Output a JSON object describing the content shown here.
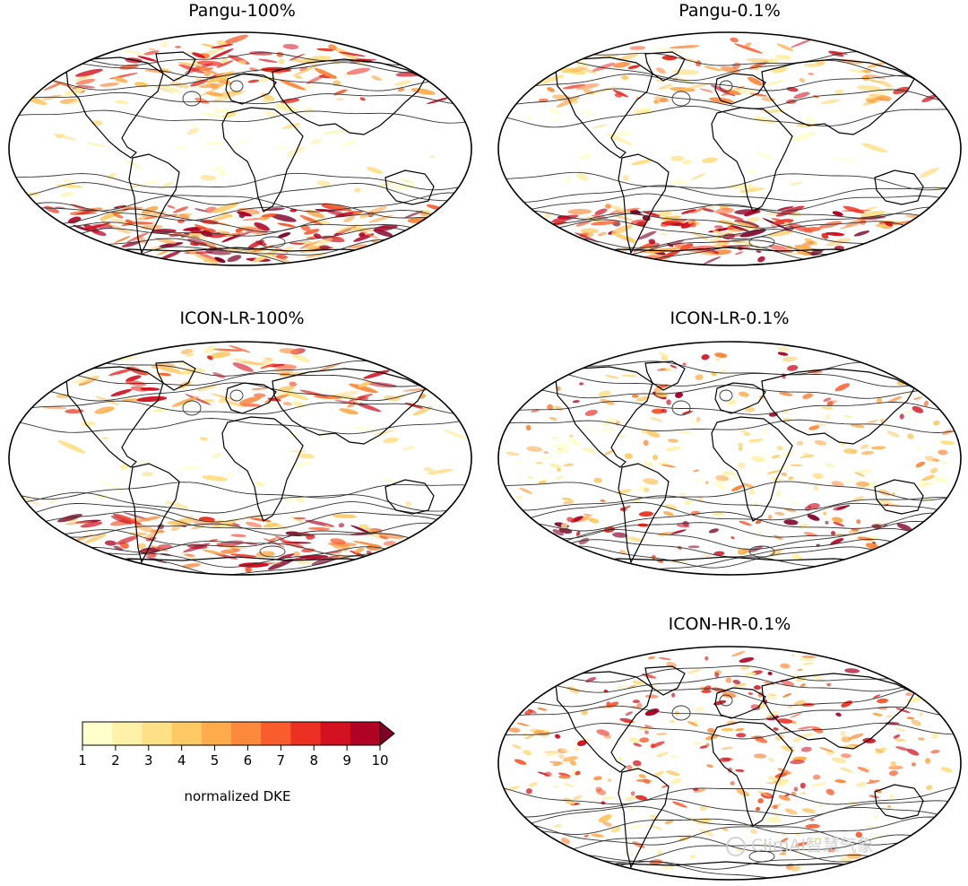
{
  "panels": [
    {
      "id": "pangu-100",
      "title": "Pangu-100%",
      "hotspots": "extratropics",
      "density": 1.0
    },
    {
      "id": "pangu-01",
      "title": "Pangu-0.1%",
      "hotspots": "extratropics",
      "density": 0.9
    },
    {
      "id": "iconlr-100",
      "title": "ICON-LR-100%",
      "hotspots": "extratropics",
      "density": 0.8
    },
    {
      "id": "iconlr-01",
      "title": "ICON-LR-0.1%",
      "hotspots": "scattered",
      "density": 0.75
    },
    {
      "id": "iconhr-01",
      "title": "ICON-HR-0.1%",
      "hotspots": "tropics",
      "density": 0.85
    }
  ],
  "colorbar": {
    "label": "normalized DKE",
    "ticks": [
      "1",
      "2",
      "3",
      "4",
      "5",
      "6",
      "7",
      "8",
      "9",
      "10"
    ],
    "min": 1,
    "max": 10,
    "extend": "max",
    "colormap": "YlOrRd",
    "colors": [
      "#ffffcc",
      "#fff1a8",
      "#fee087",
      "#fec965",
      "#feab4b",
      "#fd893c",
      "#fa5c2e",
      "#ec3023",
      "#d31121",
      "#af0225",
      "#800026"
    ]
  },
  "projection": "Robinson",
  "watermark": {
    "text": "ClimAI智慧气象",
    "icon": "wechat-icon"
  },
  "colors": {
    "coastline": "#000000",
    "contour": "#333333",
    "background": "#ffffff"
  }
}
